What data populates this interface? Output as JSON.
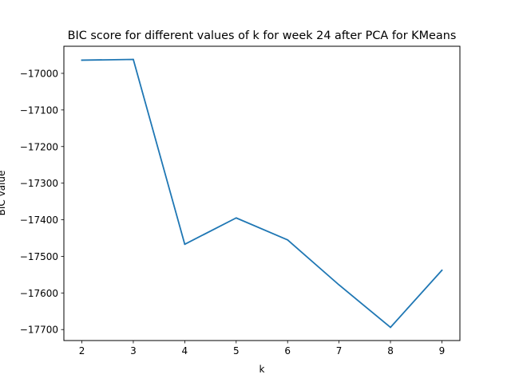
{
  "chart_data": {
    "type": "line",
    "title": "BIC score for different values of k for week 24 after PCA for KMeans",
    "xlabel": "k",
    "ylabel": "BIC value",
    "x": [
      2,
      3,
      4,
      5,
      6,
      7,
      8,
      9
    ],
    "series": [
      {
        "values": [
          -16964,
          -16962,
          -17467,
          -17395,
          -17455,
          -17578,
          -17694,
          -17538
        ],
        "color": "#1f77b4"
      }
    ],
    "xticks": [
      "2",
      "3",
      "4",
      "5",
      "6",
      "7",
      "8",
      "9"
    ],
    "yticks": [
      "−17000",
      "−17100",
      "−17200",
      "−17300",
      "−17400",
      "−17500",
      "−17600",
      "−17700"
    ],
    "xlim": [
      1.65,
      9.35
    ],
    "ylim": [
      -17730,
      -16926
    ],
    "grid": false,
    "legend": false
  }
}
